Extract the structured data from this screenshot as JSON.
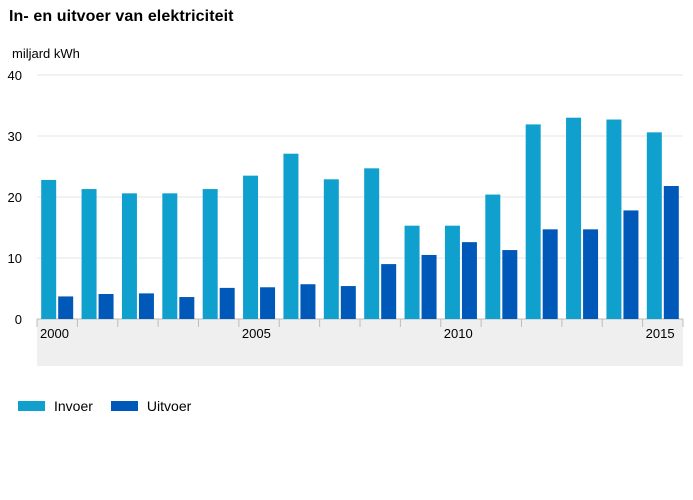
{
  "colors": {
    "invoer": "#0fa0cd",
    "uitvoer": "#0058b8",
    "axis_band": "#efefef",
    "grid": "#e6e6e6"
  },
  "chart_data": {
    "type": "bar",
    "title": "In- en uitvoer van elektriciteit",
    "ylabel": "miljard kWh",
    "xlabel": "",
    "ylim": [
      0,
      40
    ],
    "yticks": [
      0,
      10,
      20,
      30,
      40
    ],
    "grid": true,
    "legend_position": "bottom-left",
    "categories": [
      "2000",
      "2001",
      "2002",
      "2003",
      "2004",
      "2005",
      "2006",
      "2007",
      "2008",
      "2009",
      "2010",
      "2011",
      "2012",
      "2013",
      "2014",
      "2015"
    ],
    "x_tick_labels": [
      "2000",
      "",
      "",
      "",
      "",
      "2005",
      "",
      "",
      "",
      "",
      "2010",
      "",
      "",
      "",
      "",
      "2015"
    ],
    "series": [
      {
        "name": "Invoer",
        "color_key": "invoer",
        "values": [
          22.8,
          21.3,
          20.6,
          20.6,
          21.3,
          23.5,
          27.1,
          22.9,
          24.7,
          15.3,
          15.3,
          20.4,
          31.9,
          33.0,
          32.7,
          30.6
        ]
      },
      {
        "name": "Uitvoer",
        "color_key": "uitvoer",
        "values": [
          3.7,
          4.1,
          4.2,
          3.6,
          5.1,
          5.2,
          5.7,
          5.4,
          9.0,
          10.5,
          12.6,
          11.3,
          14.7,
          14.7,
          17.8,
          21.8
        ]
      }
    ]
  }
}
